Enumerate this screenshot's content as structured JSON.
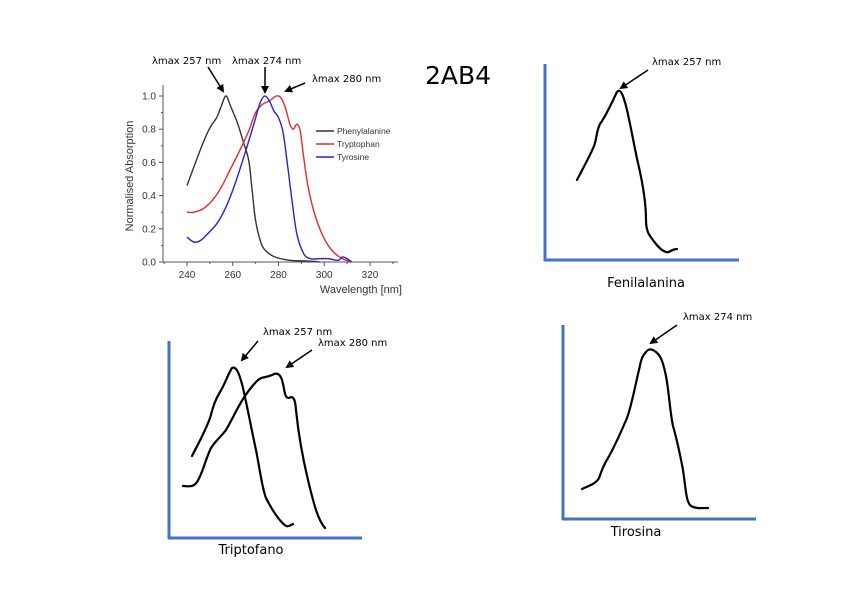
{
  "title": "2AB4",
  "chart_data": [
    {
      "type": "line",
      "title": "",
      "xlabel": "Wavelength [nm]",
      "ylabel": "Normalised Absorption",
      "xlim": [
        230,
        330
      ],
      "ylim": [
        0,
        1.07
      ],
      "x_ticks": [
        "240",
        "260",
        "280",
        "300",
        "320"
      ],
      "x_tick_values": [
        240,
        260,
        280,
        300,
        320
      ],
      "y_ticks": [
        "0.0",
        "0.2",
        "0.4",
        "0.6",
        "0.8",
        "1.0"
      ],
      "y_tick_values": [
        0,
        0.2,
        0.4,
        0.6,
        0.8,
        1.0
      ],
      "grid": false,
      "legend_position": "center-right",
      "series": [
        {
          "name": "Phenylalanine",
          "color": "#333333",
          "x": [
            240,
            244,
            248,
            250.5,
            253,
            255,
            257,
            259,
            262,
            264.5,
            267,
            268.5,
            270,
            272.5,
            275,
            278.5,
            285,
            294,
            298
          ],
          "y": [
            0.46,
            0.61,
            0.75,
            0.82,
            0.87,
            0.94,
            1.0,
            0.94,
            0.84,
            0.73,
            0.61,
            0.43,
            0.25,
            0.11,
            0.06,
            0.03,
            0.01,
            0.005,
            0.0
          ]
        },
        {
          "name": "Tryptophan",
          "color": "#e8282b",
          "x": [
            240,
            243,
            247,
            251,
            255,
            259,
            263,
            267,
            270,
            273,
            276,
            279,
            281,
            283,
            285,
            286.5,
            288,
            289.5,
            291,
            293,
            296,
            300,
            304,
            308,
            312
          ],
          "y": [
            0.3,
            0.3,
            0.32,
            0.37,
            0.45,
            0.56,
            0.67,
            0.79,
            0.9,
            0.95,
            0.97,
            1.0,
            0.99,
            0.93,
            0.83,
            0.8,
            0.83,
            0.79,
            0.63,
            0.45,
            0.28,
            0.14,
            0.06,
            0.02,
            0.0
          ]
        },
        {
          "name": "Tyrosine",
          "color": "#2222dd",
          "x": [
            240,
            243,
            246,
            249,
            253,
            257,
            261,
            265,
            269,
            272,
            274,
            276,
            278,
            280,
            282,
            284,
            286,
            288,
            291,
            294,
            298,
            302,
            306,
            308,
            310,
            312
          ],
          "y": [
            0.15,
            0.12,
            0.13,
            0.17,
            0.23,
            0.33,
            0.47,
            0.64,
            0.82,
            0.96,
            1.0,
            0.97,
            0.91,
            0.87,
            0.78,
            0.58,
            0.36,
            0.17,
            0.05,
            0.02,
            0.02,
            0.02,
            0.01,
            0.03,
            0.02,
            0.0
          ]
        }
      ],
      "annotations": [
        {
          "text": "λmax 257 nm",
          "target_x": 257,
          "target_y": 1.0
        },
        {
          "text": "λmax 274 nm",
          "target_x": 274,
          "target_y": 1.0
        },
        {
          "text": "λmax 280 nm",
          "target_x": 279,
          "target_y": 1.0
        }
      ]
    }
  ],
  "sketches": {
    "fenilalanina": {
      "caption": "Fenilalanina",
      "annotations": [
        "λmax 257 nm"
      ]
    },
    "triptofano": {
      "caption": "Triptofano",
      "annotations": [
        "λmax 257 nm",
        "λmax 280 nm"
      ]
    },
    "tirosina": {
      "caption": "Tirosina",
      "annotations": [
        "λmax 274 nm"
      ]
    }
  },
  "colors": {
    "sketch_axis": "#4472c4",
    "sketch_curve": "#000000"
  }
}
